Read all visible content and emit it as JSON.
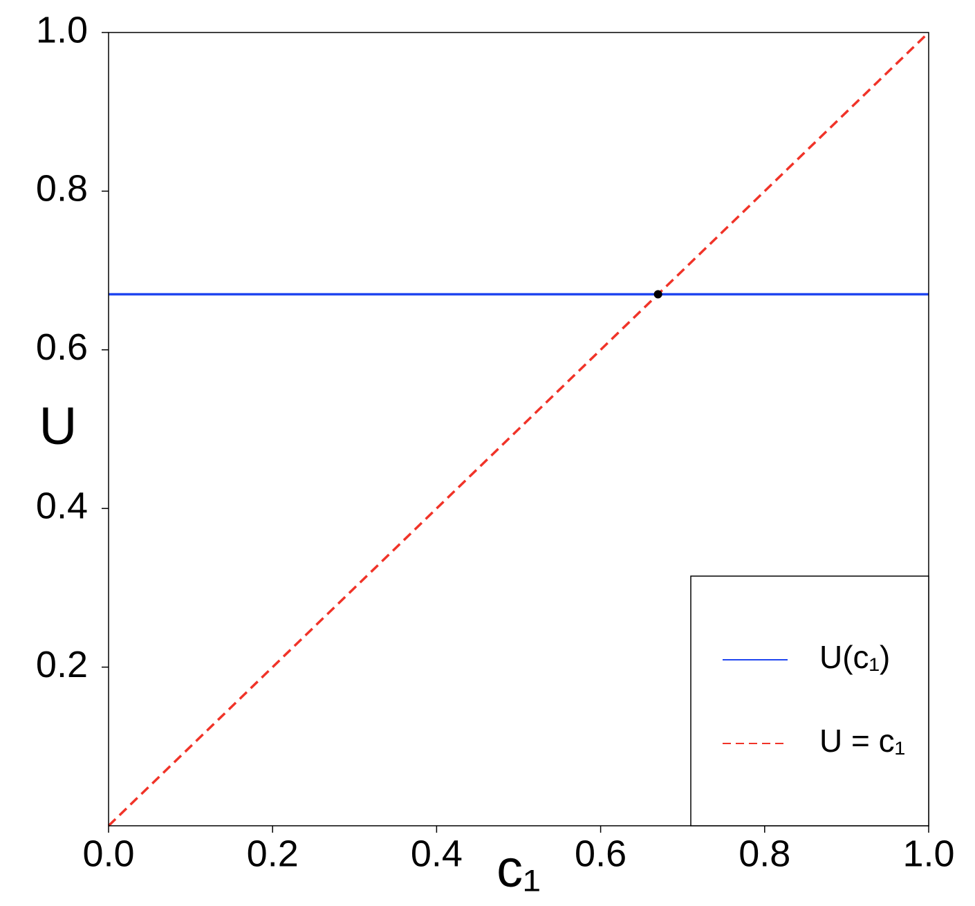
{
  "chart_data": {
    "type": "line",
    "xlabel": "c₁",
    "ylabel": "U",
    "xlim": [
      0,
      1
    ],
    "ylim": [
      0,
      1
    ],
    "xticks": [
      {
        "value": 0,
        "label": "0.0"
      },
      0.2,
      0.4,
      0.6,
      0.8,
      {
        "value": 1,
        "label": "1.0"
      }
    ],
    "yticks": [
      0.2,
      0.4,
      0.6,
      0.8,
      {
        "value": 1,
        "label": "1.0"
      }
    ],
    "legend": "lower right",
    "series": [
      {
        "name": "U(c₁)",
        "color": "#1f45f0",
        "dash": "solid",
        "x": [
          0,
          1
        ],
        "values": [
          0.67,
          0.67
        ]
      },
      {
        "name": "U = c₁",
        "color": "#f03328",
        "dash": "dashed",
        "x": [
          0,
          1
        ],
        "values": [
          0,
          1
        ]
      }
    ],
    "markers": {
      "color": "#000000",
      "x": [
        0.67
      ],
      "values": [
        0.67
      ]
    }
  }
}
